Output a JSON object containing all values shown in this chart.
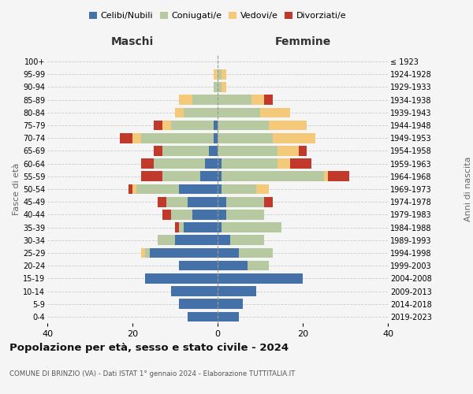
{
  "age_groups": [
    "0-4",
    "5-9",
    "10-14",
    "15-19",
    "20-24",
    "25-29",
    "30-34",
    "35-39",
    "40-44",
    "45-49",
    "50-54",
    "55-59",
    "60-64",
    "65-69",
    "70-74",
    "75-79",
    "80-84",
    "85-89",
    "90-94",
    "95-99",
    "100+"
  ],
  "birth_years": [
    "2019-2023",
    "2014-2018",
    "2009-2013",
    "2004-2008",
    "1999-2003",
    "1994-1998",
    "1989-1993",
    "1984-1988",
    "1979-1983",
    "1974-1978",
    "1969-1973",
    "1964-1968",
    "1959-1963",
    "1954-1958",
    "1949-1953",
    "1944-1948",
    "1939-1943",
    "1934-1938",
    "1929-1933",
    "1924-1928",
    "≤ 1923"
  ],
  "maschi": {
    "celibi": [
      7,
      9,
      11,
      17,
      9,
      16,
      10,
      8,
      6,
      7,
      9,
      4,
      3,
      2,
      1,
      1,
      0,
      0,
      0,
      0,
      0
    ],
    "coniugati": [
      0,
      0,
      0,
      0,
      0,
      1,
      4,
      1,
      5,
      5,
      10,
      9,
      12,
      11,
      17,
      10,
      8,
      6,
      1,
      0,
      0
    ],
    "vedovi": [
      0,
      0,
      0,
      0,
      0,
      1,
      0,
      0,
      0,
      0,
      1,
      0,
      0,
      0,
      2,
      2,
      2,
      3,
      0,
      1,
      0
    ],
    "divorziati": [
      0,
      0,
      0,
      0,
      0,
      0,
      0,
      1,
      2,
      2,
      1,
      5,
      3,
      2,
      3,
      2,
      0,
      0,
      0,
      0,
      0
    ]
  },
  "femmine": {
    "nubili": [
      5,
      6,
      9,
      20,
      7,
      5,
      3,
      1,
      2,
      2,
      1,
      1,
      1,
      0,
      0,
      0,
      0,
      0,
      0,
      0,
      0
    ],
    "coniugate": [
      0,
      0,
      0,
      0,
      5,
      8,
      8,
      14,
      9,
      9,
      8,
      24,
      13,
      14,
      13,
      12,
      10,
      8,
      1,
      1,
      0
    ],
    "vedove": [
      0,
      0,
      0,
      0,
      0,
      0,
      0,
      0,
      0,
      0,
      3,
      1,
      3,
      5,
      10,
      9,
      7,
      3,
      1,
      1,
      0
    ],
    "divorziate": [
      0,
      0,
      0,
      0,
      0,
      0,
      0,
      0,
      0,
      2,
      0,
      5,
      5,
      2,
      0,
      0,
      0,
      2,
      0,
      0,
      0
    ]
  },
  "colors": {
    "celibi": "#4472a8",
    "coniugati": "#b7c9a0",
    "vedovi": "#f5c97a",
    "divorziati": "#c0392b"
  },
  "xlim": 40,
  "title": "Popolazione per età, sesso e stato civile - 2024",
  "subtitle": "COMUNE DI BRINZIO (VA) - Dati ISTAT 1° gennaio 2024 - Elaborazione TUTTITALIA.IT",
  "xlabel_left": "Maschi",
  "xlabel_right": "Femmine",
  "ylabel_left": "Fasce di età",
  "ylabel_right": "Anni di nascita",
  "legend_labels": [
    "Celibi/Nubili",
    "Coniugati/e",
    "Vedovi/e",
    "Divorziati/e"
  ],
  "background_color": "#f5f5f5"
}
